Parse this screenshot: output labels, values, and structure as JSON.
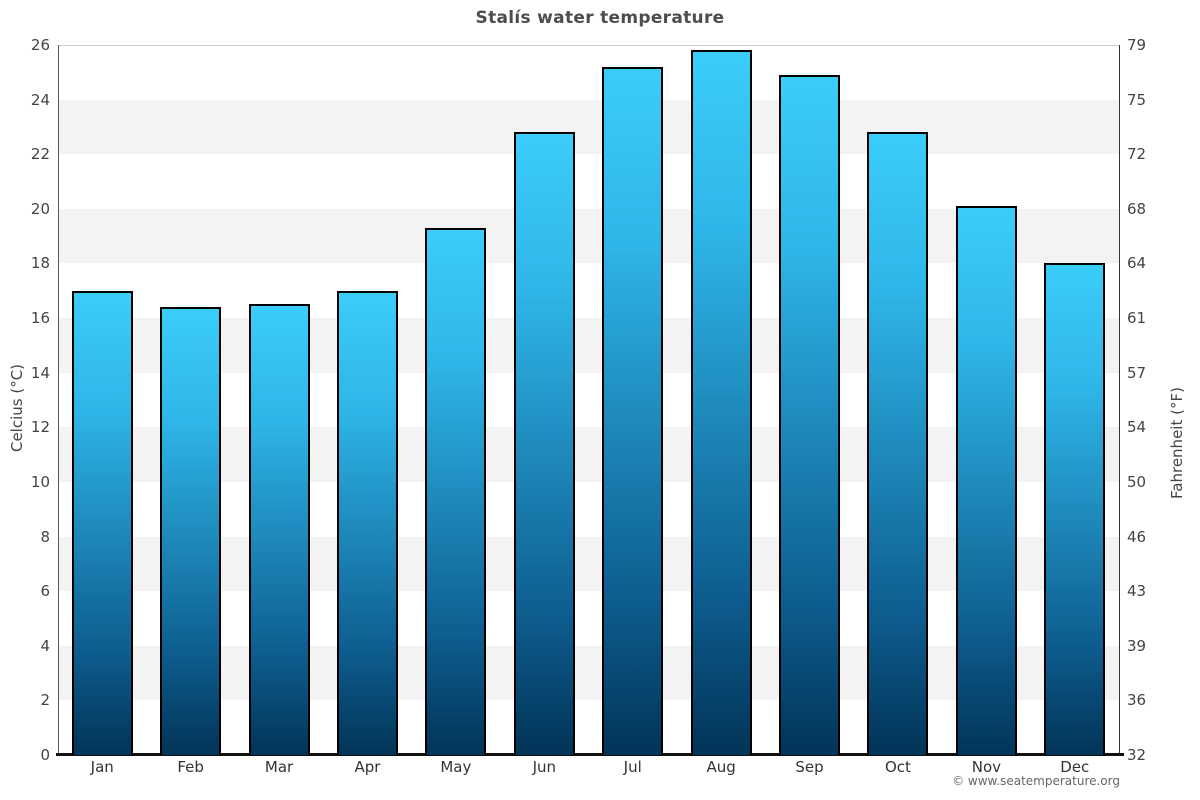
{
  "chart_data": {
    "type": "bar",
    "title": "Stalís water temperature",
    "categories": [
      "Jan",
      "Feb",
      "Mar",
      "Apr",
      "May",
      "Jun",
      "Jul",
      "Aug",
      "Sep",
      "Oct",
      "Nov",
      "Dec"
    ],
    "values": [
      17.0,
      16.4,
      16.5,
      17.0,
      19.3,
      22.8,
      25.2,
      25.8,
      24.9,
      22.8,
      20.1,
      18.0
    ],
    "unit": "°C",
    "ylabel_left": "Celcius (°C)",
    "ylabel_right": "Fahrenheit (°F)",
    "ylim": [
      0,
      26
    ],
    "yticks": [
      {
        "celsius": "0",
        "fahrenheit": "32"
      },
      {
        "celsius": "2",
        "fahrenheit": "36"
      },
      {
        "celsius": "4",
        "fahrenheit": "39"
      },
      {
        "celsius": "6",
        "fahrenheit": "43"
      },
      {
        "celsius": "8",
        "fahrenheit": "46"
      },
      {
        "celsius": "10",
        "fahrenheit": "50"
      },
      {
        "celsius": "12",
        "fahrenheit": "54"
      },
      {
        "celsius": "14",
        "fahrenheit": "57"
      },
      {
        "celsius": "16",
        "fahrenheit": "61"
      },
      {
        "celsius": "18",
        "fahrenheit": "64"
      },
      {
        "celsius": "20",
        "fahrenheit": "68"
      },
      {
        "celsius": "22",
        "fahrenheit": "72"
      },
      {
        "celsius": "24",
        "fahrenheit": "75"
      },
      {
        "celsius": "26",
        "fahrenheit": "79"
      }
    ],
    "legend": "none",
    "grid": "alternating horizontal bands every 2°C",
    "colors": {
      "bar_gradient_top": "#3bcdf9",
      "bar_gradient_bottom": "#023457",
      "bar_border": "#000000",
      "band_alt": "#f3f3f3",
      "plot_background": "#ffffff",
      "title_color": "#4d4d4d"
    }
  },
  "footer": {
    "credit": "© www.seatemperature.org"
  }
}
